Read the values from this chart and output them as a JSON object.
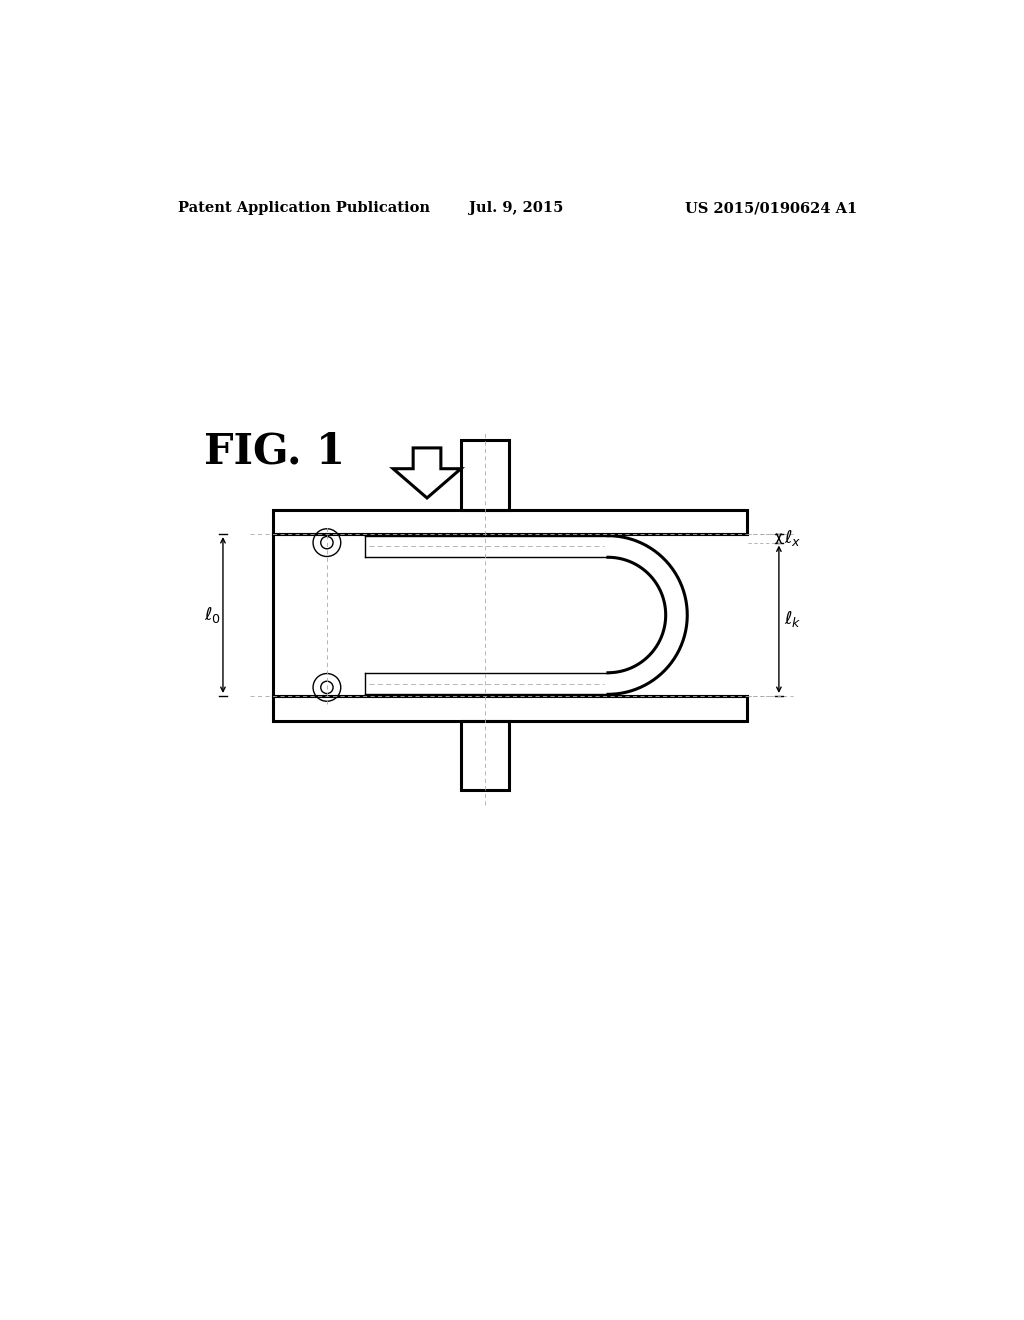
{
  "header_left": "Patent Application Publication",
  "header_center": "Jul. 9, 2015",
  "header_right": "US 2015/0190624 A1",
  "fig_label": "FIG. 1",
  "background_color": "#ffffff",
  "line_color": "#000000",
  "dashed_color": "#aaaaaa",
  "header_fontsize": 10.5,
  "fig_label_fontsize": 30,
  "dim_fontsize": 13
}
